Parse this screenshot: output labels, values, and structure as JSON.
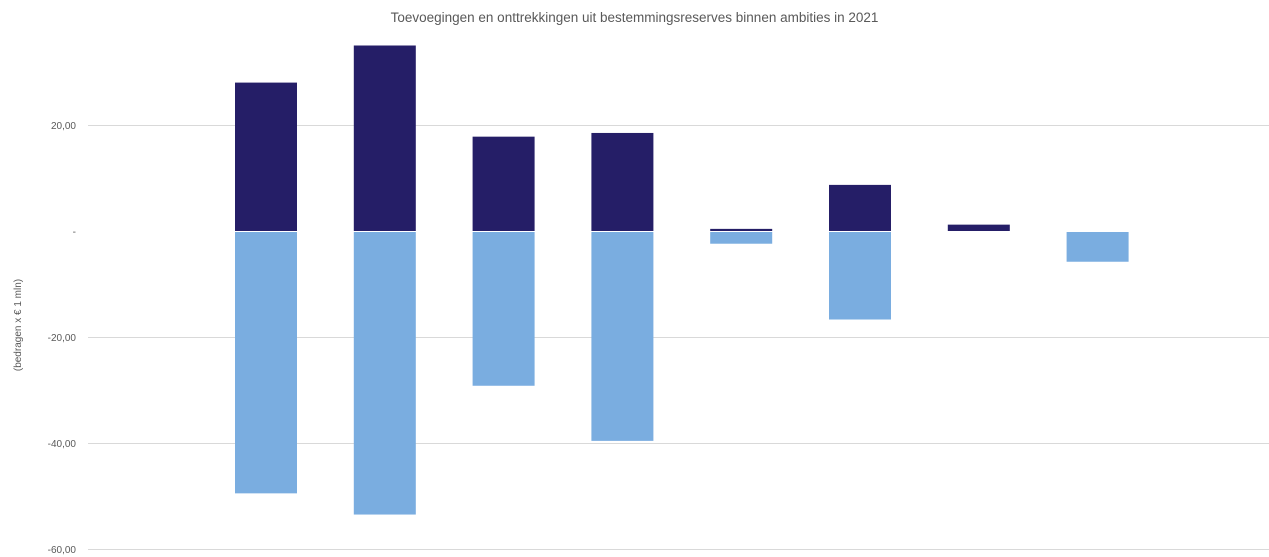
{
  "chart_data": {
    "type": "bar",
    "title": "Toevoegingen en onttrekkingen uit bestemmingsreserves binnen ambities in 2021",
    "ylabel": "(bedragen x € 1 mln)",
    "xlabel": "",
    "ylim": [
      -60,
      35
    ],
    "yticks": [
      {
        "value": 20,
        "label": "20,00"
      },
      {
        "value": 0,
        "label": "-"
      },
      {
        "value": -20,
        "label": "-20,00"
      },
      {
        "value": -40,
        "label": "-40,00"
      },
      {
        "value": -60,
        "label": "-60,00"
      }
    ],
    "grid": true,
    "stacked": true,
    "categories": [
      "",
      "",
      "",
      "",
      "",
      "",
      "",
      ""
    ],
    "series": [
      {
        "color": "#251e67",
        "values": [
          28.0,
          35.0,
          17.8,
          18.5,
          0.4,
          8.7,
          1.2,
          0
        ]
      },
      {
        "color": "#7aade0",
        "values": [
          -49.5,
          -53.5,
          -29.2,
          -39.6,
          -2.4,
          -16.7,
          0,
          -5.8
        ]
      }
    ]
  }
}
